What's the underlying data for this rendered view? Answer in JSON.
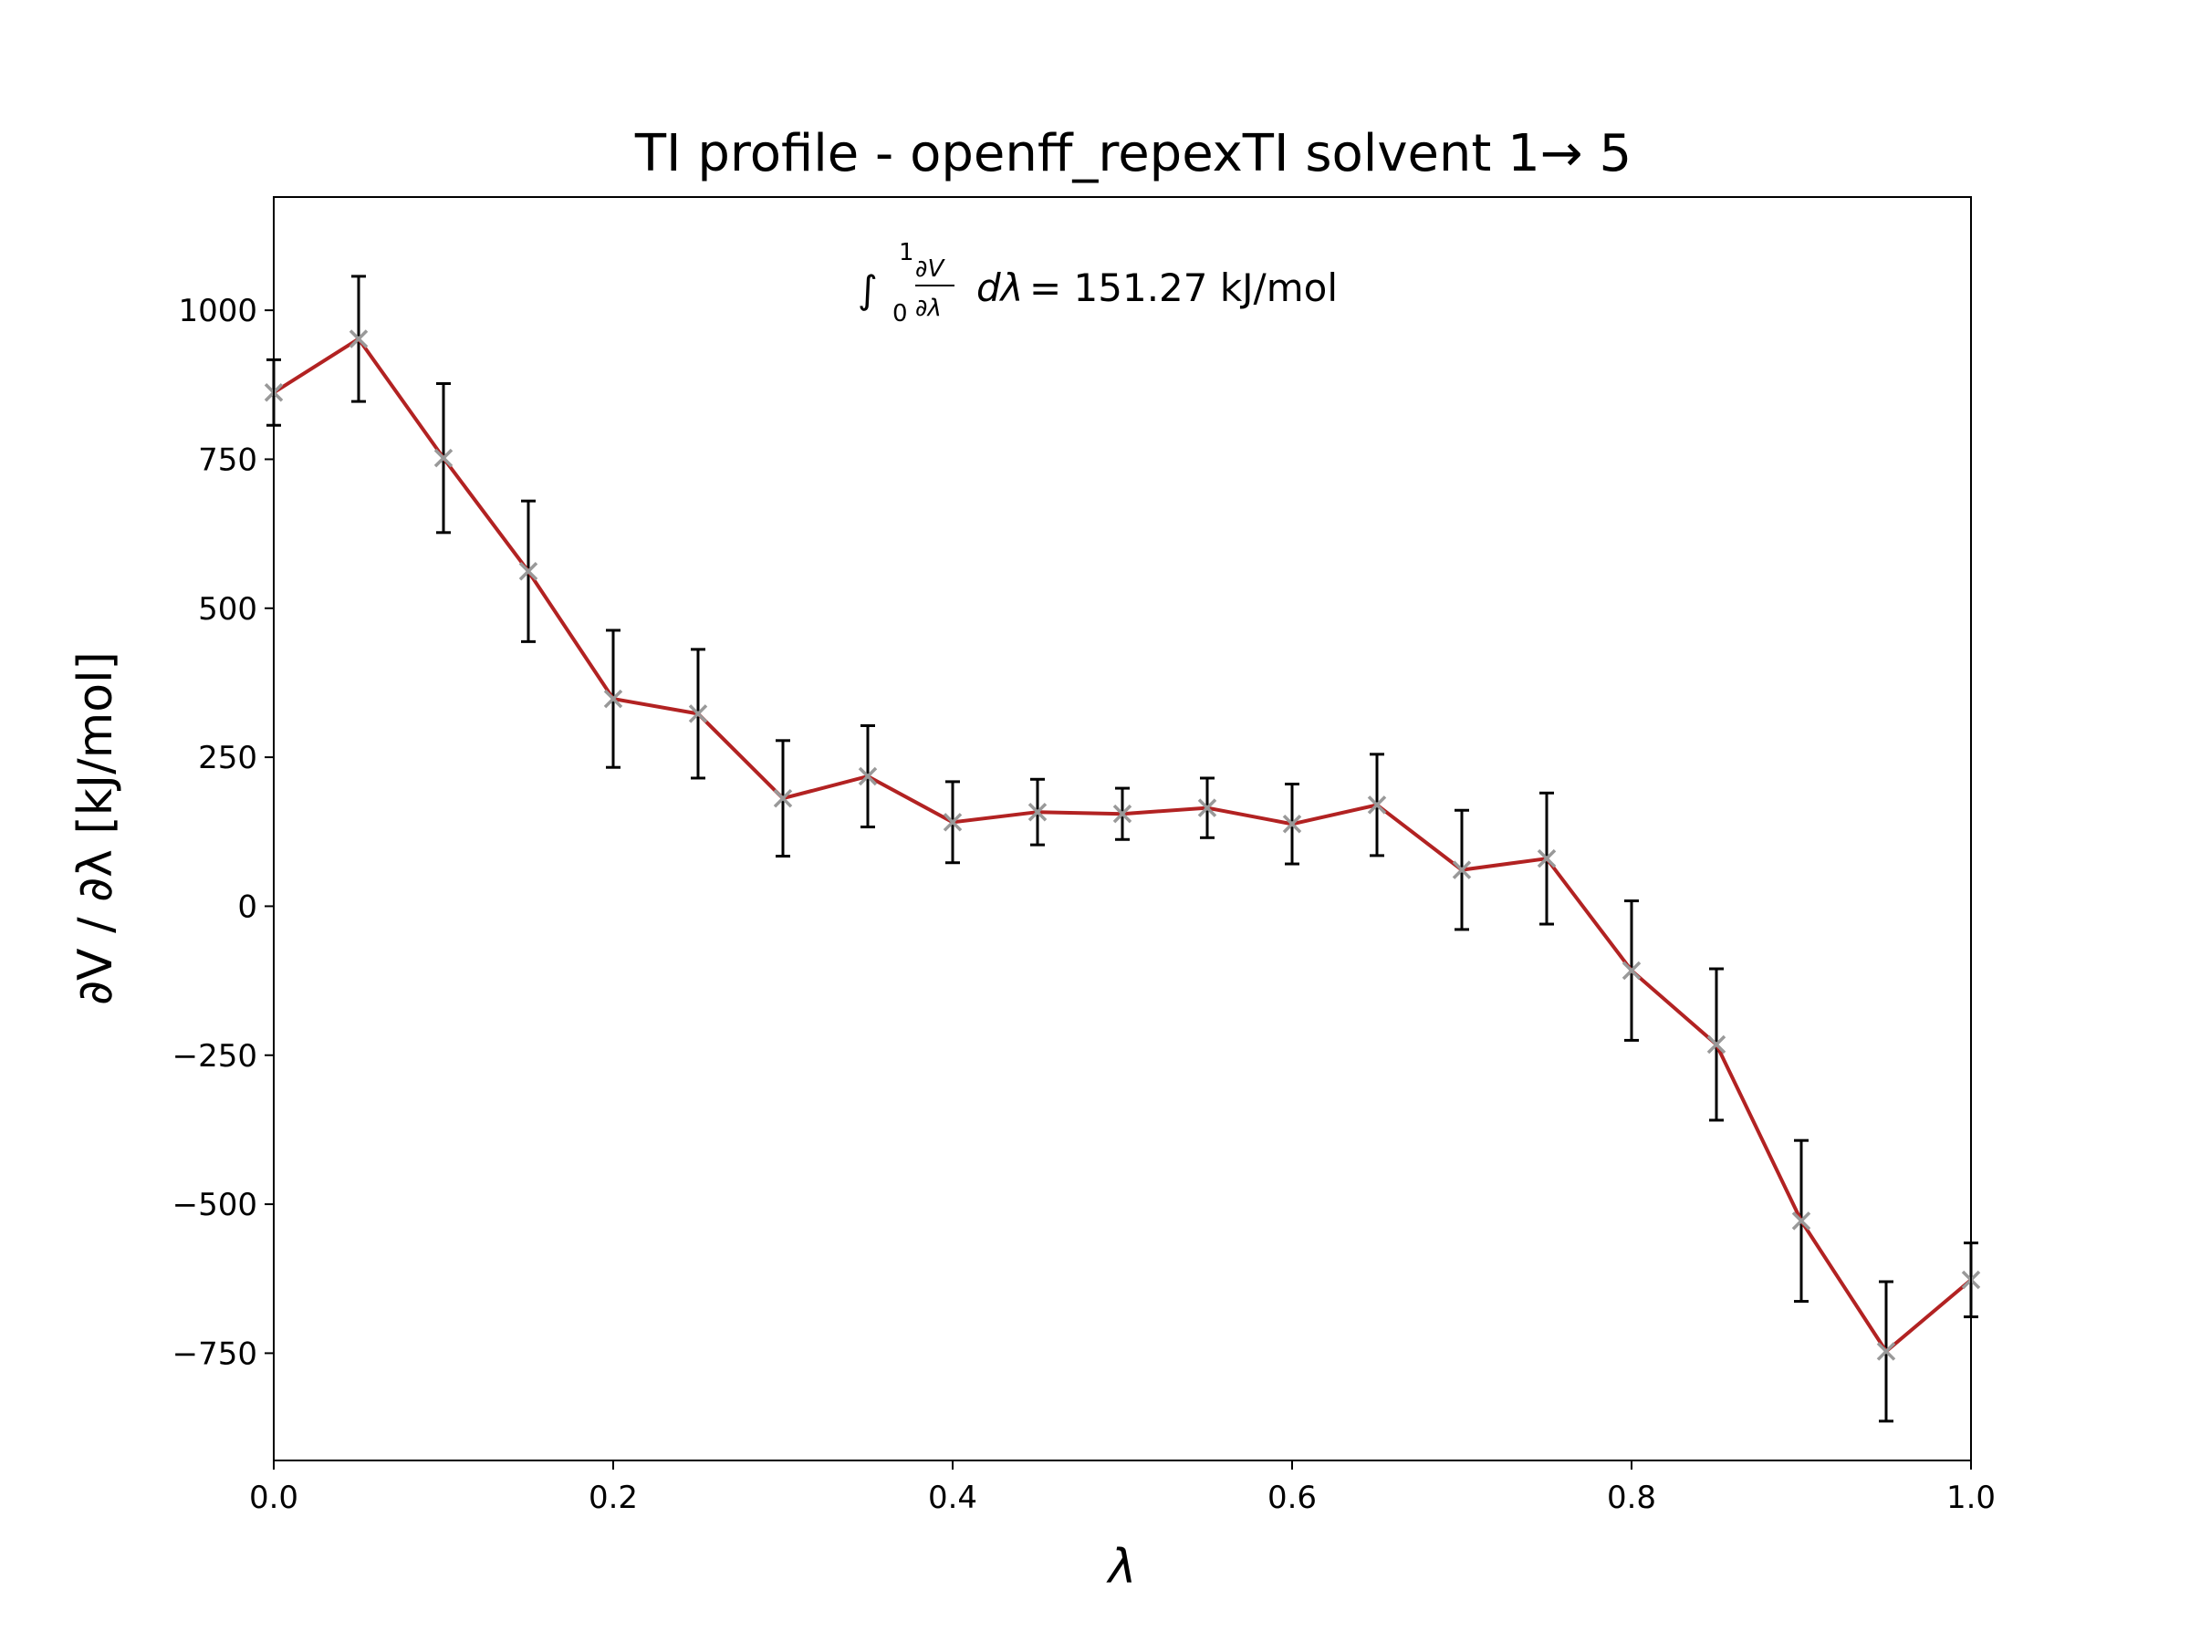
{
  "chart_data": {
    "type": "line",
    "title": "TI profile - openff_repexTI solvent 1→ 5",
    "xlabel": "λ",
    "ylabel": "∂V / ∂λ [kJ/mol]",
    "annotation": {
      "integral": "∫",
      "upper": "1",
      "lower": "0",
      "numerator": "∂V",
      "denominator": "∂λ",
      "dlambda": "dλ",
      "value_text": "= 151.27 kJ/mol"
    },
    "xlim": [
      0.0,
      1.0
    ],
    "ylim": [
      -930,
      1190
    ],
    "xticks": [
      0.0,
      0.2,
      0.4,
      0.6,
      0.8,
      1.0
    ],
    "xtick_labels": [
      "0.0",
      "0.2",
      "0.4",
      "0.6",
      "0.8",
      "1.0"
    ],
    "yticks": [
      1000,
      750,
      500,
      250,
      0,
      -250,
      -500,
      -750
    ],
    "ytick_labels": [
      "1000",
      "750",
      "500",
      "250",
      "0",
      "−250",
      "−500",
      "−750"
    ],
    "grid": false,
    "line_color": "#b22222",
    "marker_color": "#999999",
    "errorbar_color": "#000000",
    "series": [
      {
        "x": [
          0.0,
          0.05,
          0.1,
          0.15,
          0.2,
          0.25,
          0.3,
          0.35,
          0.4,
          0.45,
          0.5,
          0.55,
          0.6,
          0.65,
          0.7,
          0.75,
          0.8,
          0.85,
          0.9,
          0.95,
          1.0
        ],
        "values": [
          862,
          952,
          752,
          562,
          348,
          323,
          181,
          218,
          141,
          158,
          155,
          165,
          138,
          170,
          61,
          80,
          -108,
          -232,
          -528,
          -747,
          -627
        ],
        "errors": [
          55,
          105,
          125,
          118,
          115,
          108,
          97,
          85,
          68,
          55,
          43,
          50,
          67,
          85,
          100,
          110,
          117,
          127,
          135,
          117,
          62
        ]
      }
    ]
  }
}
